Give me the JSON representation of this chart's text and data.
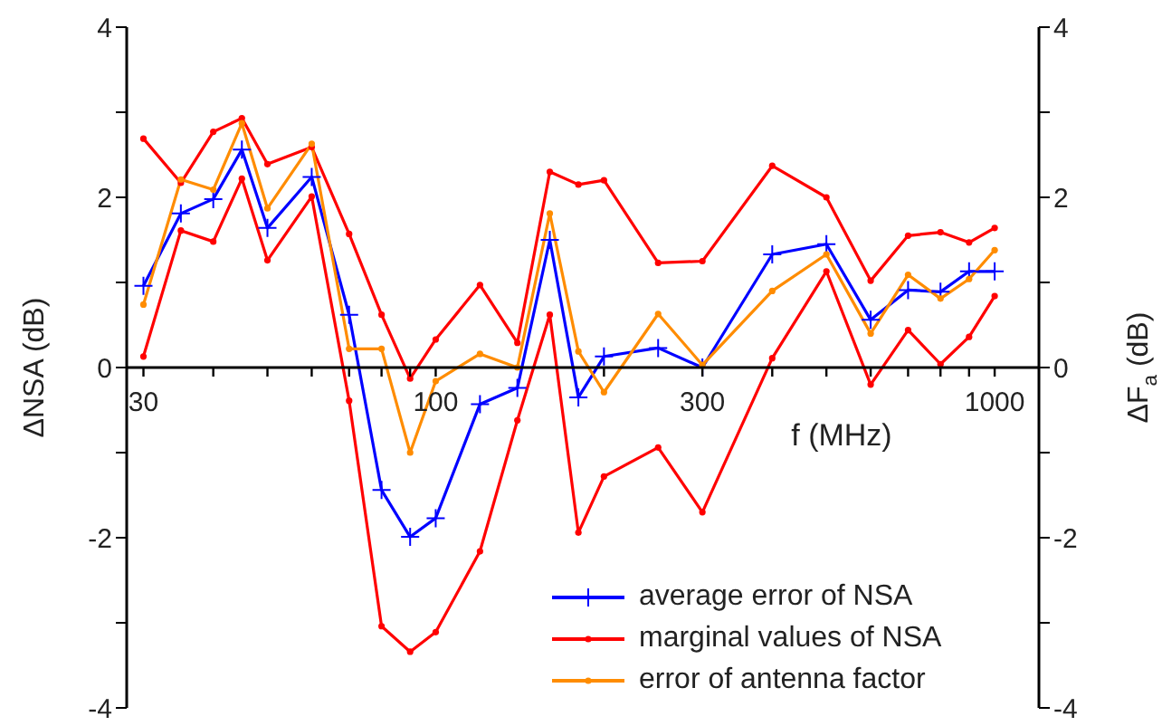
{
  "chart_data": {
    "type": "line",
    "xlabel": "f (MHz)",
    "ylabel": "ΔNSA (dB)",
    "y2label": "ΔF$_{a}$ (dB)",
    "log": "x",
    "x": [
      30,
      35,
      40,
      45,
      50,
      60,
      70,
      80,
      90,
      100,
      120,
      140,
      160,
      180,
      200,
      250,
      300,
      400,
      500,
      600,
      700,
      800,
      900,
      1000
    ],
    "xlim": [
      28,
      1200
    ],
    "xticks": [
      30,
      {
        "value": 40,
        "label": null
      },
      {
        "value": 50,
        "label": null
      },
      {
        "value": 60,
        "label": null
      },
      {
        "value": 70,
        "label": null
      },
      {
        "value": 80,
        "label": null
      },
      {
        "value": 90,
        "label": null
      },
      100,
      {
        "value": 200,
        "label": null
      },
      300,
      {
        "value": 400,
        "label": null
      },
      {
        "value": 500,
        "label": null
      },
      {
        "value": 600,
        "label": null
      },
      {
        "value": 700,
        "label": null
      },
      {
        "value": 800,
        "label": null
      },
      {
        "value": 900,
        "label": null
      },
      1000
    ],
    "ylim": [
      -4,
      4
    ],
    "yticks": [
      -4,
      {
        "value": -3,
        "label": null
      },
      -2,
      {
        "value": -1,
        "label": null
      },
      0,
      {
        "value": 1,
        "label": null
      },
      2,
      {
        "value": 3,
        "label": null
      },
      4
    ],
    "y2lim": [
      -4,
      4
    ],
    "y2ticks": [
      -4,
      {
        "value": -3,
        "label": null
      },
      -2,
      {
        "value": -1,
        "label": null
      },
      0,
      {
        "value": 1,
        "label": null
      },
      2,
      {
        "value": 3,
        "label": null
      },
      4
    ],
    "legend": "bottom right",
    "series": [
      {
        "name": "average error of NSA",
        "color": "#0000ff",
        "marker": "cross",
        "values": [
          0.96,
          1.81,
          1.98,
          2.56,
          1.64,
          2.24,
          0.62,
          -1.44,
          -1.99,
          -1.77,
          -0.43,
          -0.24,
          1.5,
          -0.35,
          0.13,
          0.23,
          0.0,
          1.33,
          1.45,
          0.56,
          0.91,
          0.89,
          1.13,
          1.13
        ]
      },
      {
        "name": "marginal values of NSA",
        "color": "#ff0000",
        "marker": "circle",
        "values": [
          2.69,
          2.17,
          2.77,
          2.93,
          2.39,
          2.59,
          1.57,
          0.62,
          -0.13,
          0.33,
          0.97,
          0.29,
          2.3,
          2.15,
          2.2,
          1.23,
          1.25,
          2.37,
          2.0,
          1.02,
          1.55,
          1.59,
          1.47,
          1.64
        ]
      },
      {
        "color": "#ff0000",
        "marker": "circle",
        "values": [
          0.13,
          1.61,
          1.48,
          2.22,
          1.26,
          2.01,
          -0.39,
          -3.04,
          -3.34,
          -3.11,
          -2.16,
          -0.62,
          0.62,
          -1.94,
          -1.28,
          -0.94,
          -1.7,
          0.11,
          1.13,
          -0.2,
          0.44,
          0.04,
          0.36,
          0.84
        ]
      },
      {
        "name": "error of antenna factor",
        "color": "#ff8c00",
        "marker": "circle",
        "values": [
          0.74,
          2.21,
          2.09,
          2.87,
          1.87,
          2.63,
          0.22,
          0.22,
          -1.0,
          -0.16,
          0.16,
          0.0,
          1.81,
          0.19,
          -0.29,
          0.63,
          0.03,
          0.9,
          1.33,
          0.4,
          1.09,
          0.81,
          1.04,
          1.38
        ]
      }
    ]
  }
}
